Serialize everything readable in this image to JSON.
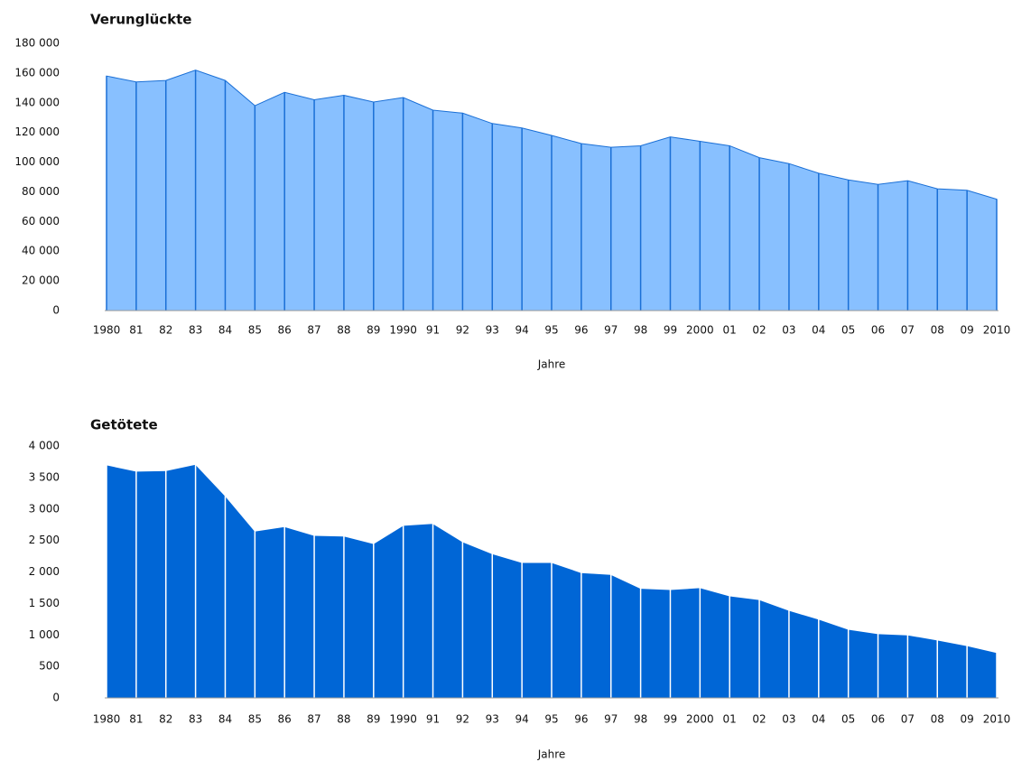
{
  "chart_data": [
    {
      "type": "area",
      "title": "Verunglückte",
      "x_label": "Jahre",
      "categories": [
        "1980",
        "81",
        "82",
        "83",
        "84",
        "85",
        "86",
        "87",
        "88",
        "89",
        "1990",
        "91",
        "92",
        "93",
        "94",
        "95",
        "96",
        "97",
        "98",
        "99",
        "2000",
        "01",
        "02",
        "03",
        "04",
        "05",
        "06",
        "07",
        "08",
        "09",
        "2010"
      ],
      "values": [
        158000,
        154000,
        155000,
        162000,
        155000,
        138000,
        147000,
        142000,
        145000,
        140500,
        143500,
        135000,
        133000,
        126000,
        123000,
        118000,
        112500,
        110000,
        111000,
        117000,
        114000,
        111000,
        103000,
        99000,
        92500,
        88000,
        85000,
        87500,
        82000,
        81000,
        75000
      ],
      "color": "#88c0ff",
      "line_color": "#1a6fd6",
      "ylim": [
        0,
        180000
      ],
      "yticks": [
        0,
        {
          "value": 20000,
          "label": "20 000"
        },
        {
          "value": 40000,
          "label": "40 000"
        },
        {
          "value": 60000,
          "label": "60 000"
        },
        {
          "value": 80000,
          "label": "80 000"
        },
        {
          "value": 100000,
          "label": "100 000"
        },
        {
          "value": 120000,
          "label": "120 000"
        },
        {
          "value": 140000,
          "label": "140 000"
        },
        {
          "value": 160000,
          "label": "160 000"
        },
        {
          "value": 180000,
          "label": "180 000"
        }
      ]
    },
    {
      "type": "area",
      "title": "Getötete",
      "x_label": "Jahre",
      "categories": [
        "1980",
        "81",
        "82",
        "83",
        "84",
        "85",
        "86",
        "87",
        "88",
        "89",
        "1990",
        "91",
        "92",
        "93",
        "94",
        "95",
        "96",
        "97",
        "98",
        "99",
        "2000",
        "01",
        "02",
        "03",
        "04",
        "05",
        "06",
        "07",
        "08",
        "09",
        "2010"
      ],
      "values": [
        3700,
        3600,
        3610,
        3710,
        3210,
        2650,
        2720,
        2580,
        2570,
        2450,
        2740,
        2770,
        2480,
        2290,
        2150,
        2150,
        1990,
        1960,
        1740,
        1720,
        1750,
        1620,
        1560,
        1390,
        1250,
        1090,
        1020,
        1000,
        920,
        830,
        720
      ],
      "color": "#0066d6",
      "line_color": "#ffffff",
      "ylim": [
        0,
        4000
      ],
      "yticks": [
        0,
        500,
        {
          "value": 1000,
          "label": "1 000"
        },
        {
          "value": 1500,
          "label": "1 500"
        },
        {
          "value": 2000,
          "label": "2 000"
        },
        {
          "value": 2500,
          "label": "2 500"
        },
        {
          "value": 3000,
          "label": "3 000"
        },
        {
          "value": 3500,
          "label": "3 500"
        },
        {
          "value": 4000,
          "label": "4 000"
        }
      ]
    }
  ]
}
